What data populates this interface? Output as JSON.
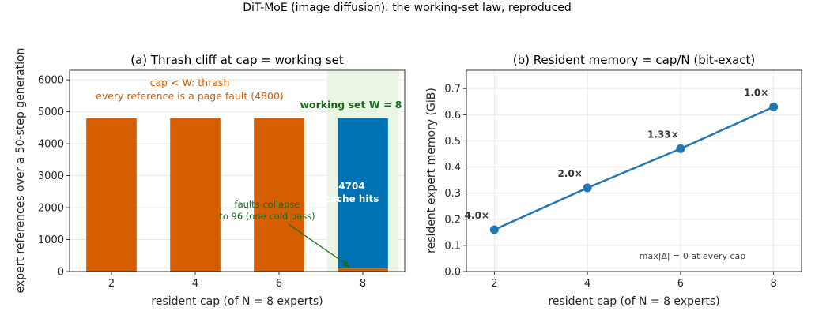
{
  "suptitle": "DiT-MoE (image diffusion): the working-set law, reproduced",
  "colors": {
    "thrash": "#d55e00",
    "hit": "#0072b2",
    "line": "#1f77b4",
    "ws_text": "#1a6b1a",
    "band": "#eaf5e6",
    "grid": "#e8e8e8"
  },
  "chart_data": [
    {
      "type": "bar",
      "title": "(a) Thrash cliff at cap = working set",
      "xlabel": "resident cap (of N = 8 experts)",
      "ylabel": "expert references over a 50-step generation",
      "categories": [
        "2",
        "4",
        "6",
        "8"
      ],
      "series": [
        {
          "name": "page faults",
          "values": [
            4800,
            4800,
            4800,
            96
          ]
        },
        {
          "name": "cache hits",
          "values": [
            0,
            0,
            0,
            4704
          ]
        }
      ],
      "ylim": [
        0,
        6300
      ],
      "yticks": [
        "0",
        "1000",
        "2000",
        "3000",
        "4000",
        "5000",
        "6000"
      ],
      "annotations": {
        "thrash_line1": "cap < W: thrash",
        "thrash_line2": "every reference is a page fault (4800)",
        "working_set": "working set W = 8",
        "hits_value": "4704",
        "hits_label": "cache hits",
        "collapse_line1": "faults collapse",
        "collapse_line2": "to 96 (one cold pass)"
      },
      "grid": true
    },
    {
      "type": "line",
      "title": "(b) Resident memory = cap/N (bit-exact)",
      "xlabel": "resident cap (of N = 8 experts)",
      "ylabel": "resident expert memory (GiB)",
      "x": [
        2,
        4,
        6,
        8
      ],
      "y": [
        0.16,
        0.32,
        0.47,
        0.63
      ],
      "point_labels": [
        "4.0×",
        "2.0×",
        "1.33×",
        "1.0×"
      ],
      "xticks": [
        "2",
        "4",
        "6",
        "8"
      ],
      "yticks": [
        "0.0",
        "0.1",
        "0.2",
        "0.3",
        "0.4",
        "0.5",
        "0.6",
        "0.7"
      ],
      "xlim": [
        1.4,
        8.6
      ],
      "ylim": [
        0.0,
        0.77
      ],
      "note": "max|Δ| = 0 at every cap",
      "grid": true
    }
  ]
}
